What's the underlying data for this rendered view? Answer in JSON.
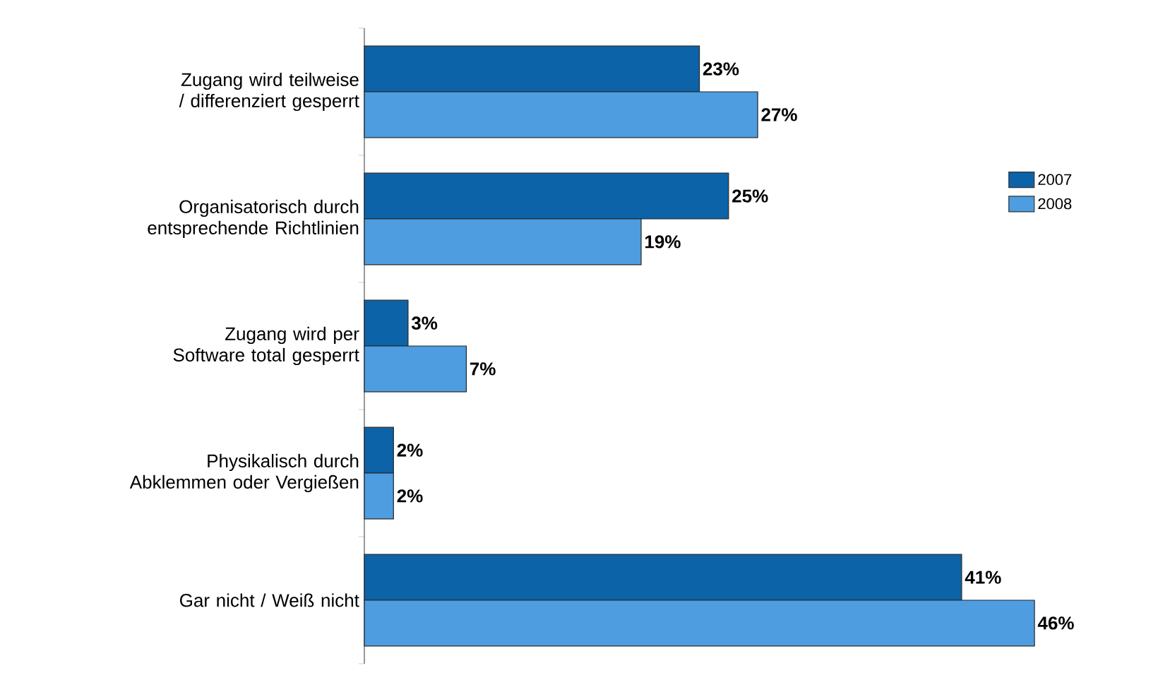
{
  "chart_data": {
    "type": "bar",
    "orientation": "horizontal",
    "categories": [
      "Zugang wird teilweise / differenziert gesperrt",
      "Organisatorisch durch entsprechende Richtlinien",
      "Zugang wird per Software total gesperrt",
      "Physikalisch durch Abklemmen oder Vergießen",
      "Gar nicht / Weiß nicht"
    ],
    "series": [
      {
        "name": "2007",
        "color": "#0c63a8",
        "values": [
          23,
          25,
          3,
          2,
          41
        ],
        "value_labels": [
          "23%",
          "25%",
          "3%",
          "2%",
          "41%"
        ]
      },
      {
        "name": "2008",
        "color": "#4d9de0",
        "values": [
          27,
          19,
          7,
          2,
          46
        ],
        "value_labels": [
          "27%",
          "19%",
          "7%",
          "2%",
          "46%"
        ]
      }
    ],
    "legend": "right"
  }
}
